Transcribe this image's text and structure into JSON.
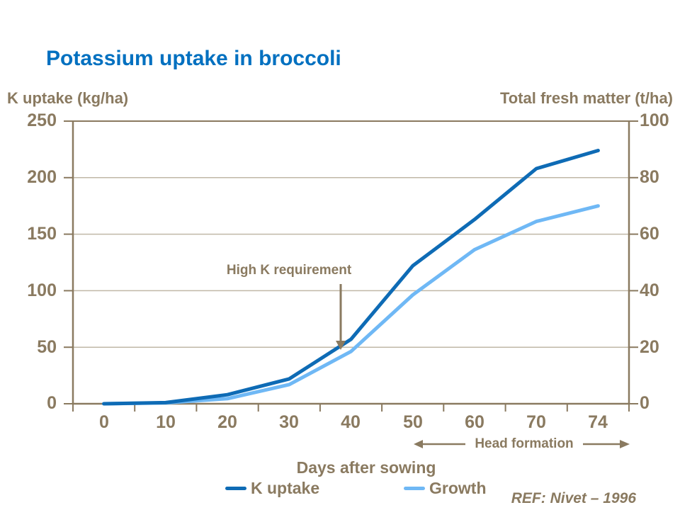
{
  "title": "Potassium uptake in broccoli",
  "left_axis": {
    "title": "K uptake (kg/ha)",
    "ticks": [
      "250",
      "200",
      "150",
      "100",
      "50",
      "0"
    ]
  },
  "right_axis": {
    "title": "Total fresh matter (t/ha)",
    "ticks": [
      "100",
      "80",
      "60",
      "40",
      "20",
      "0"
    ]
  },
  "x_axis": {
    "title": "Days after sowing",
    "ticks": [
      "0",
      "10",
      "20",
      "30",
      "40",
      "50",
      "60",
      "70",
      "74"
    ]
  },
  "annotations": {
    "high_k": "High K requirement",
    "head_formation": "Head formation",
    "reference": "REF: Nivet – 1996"
  },
  "legend": [
    {
      "label": "K uptake",
      "color": "#0E6BB5"
    },
    {
      "label": "Growth",
      "color": "#6FB8F5"
    }
  ],
  "colors": {
    "title": "#0070C0",
    "text": "#8A7A60",
    "axis": "#8A7A60",
    "grid": "#C0B8A7"
  },
  "chart_data": {
    "type": "line",
    "title": "Potassium uptake in broccoli",
    "x": [
      0,
      10,
      20,
      30,
      40,
      50,
      60,
      70,
      74
    ],
    "xlabel": "Days after sowing",
    "x_axis_style": "category (labels centered between tick marks)",
    "grid": "horizontal only",
    "legend_position": "bottom",
    "y_left": {
      "label": "K uptake (kg/ha)",
      "range": [
        0,
        250
      ],
      "tick_step": 50
    },
    "y_right": {
      "label": "Total fresh matter (t/ha)",
      "range": [
        0,
        100
      ],
      "tick_step": 20
    },
    "series": [
      {
        "name": "K uptake",
        "axis": "left",
        "unit": "kg/ha",
        "color": "#0E6BB5",
        "values": [
          0,
          1,
          8,
          22,
          57,
          122,
          163,
          208,
          224
        ]
      },
      {
        "name": "Growth",
        "axis": "right",
        "unit": "t/ha",
        "color": "#6FB8F5",
        "values": [
          0,
          0.3,
          1.8,
          6.8,
          18.5,
          38.5,
          54.5,
          64.5,
          70
        ]
      }
    ],
    "annotations": [
      {
        "text": "High K requirement",
        "arrow_points_to": {
          "x_day": 38.5,
          "y_left": 50
        }
      },
      {
        "text": "Head formation",
        "span_days": [
          50,
          74
        ]
      },
      {
        "text": "REF: Nivet – 1996"
      }
    ]
  }
}
